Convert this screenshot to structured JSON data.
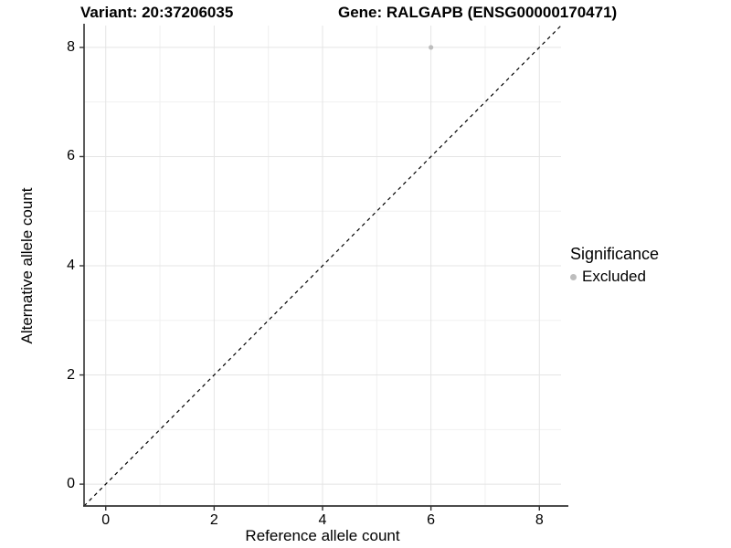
{
  "titles": {
    "variant": "Variant: 20:37206035",
    "gene": "Gene: RALGAPB (ENSG00000170471)"
  },
  "legend": {
    "title": "Significance",
    "items": [
      {
        "label": "Excluded",
        "color": "#bdbdbd"
      }
    ]
  },
  "chart_data": {
    "type": "scatter",
    "title_left": "Variant: 20:37206035",
    "title_right": "Gene: RALGAPB (ENSG00000170471)",
    "xlabel": "Reference allele count",
    "ylabel": "Alternative allele count",
    "xlim": [
      -0.4,
      8.4
    ],
    "ylim": [
      -0.4,
      8.4
    ],
    "x_ticks": [
      0,
      2,
      4,
      6,
      8
    ],
    "y_ticks": [
      0,
      2,
      4,
      6,
      8
    ],
    "x_minor_ticks": [
      1,
      3,
      5,
      7
    ],
    "y_minor_ticks": [
      1,
      3,
      5,
      7
    ],
    "grid": true,
    "legend_position": "right",
    "reference_line": {
      "equation": "y = x",
      "style": "dashed",
      "color": "#000000"
    },
    "series": [
      {
        "name": "Excluded",
        "color": "#bdbdbd",
        "points": [
          {
            "x": 6,
            "y": 8
          }
        ]
      }
    ],
    "colors": {
      "axis_line": "#333333",
      "grid_major": "#e4e4e4",
      "grid_minor": "#f0f0f0",
      "point": "#bdbdbd",
      "text": "#000000",
      "background": "#ffffff"
    }
  }
}
